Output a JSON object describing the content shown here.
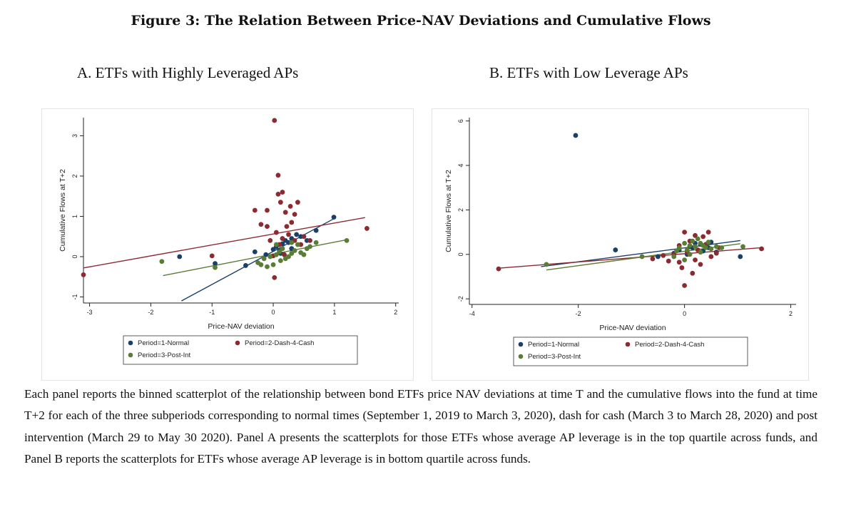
{
  "figure": {
    "title": "Figure 3: The Relation Between Price-NAV Deviations and Cumulative Flows",
    "caption": "Each panel reports the binned scatterplot of the relationship between bond ETFs price NAV deviations at time T and the cumulative flows into the fund at time T+2 for each of the three subperiods corresponding to normal times (September 1, 2019 to March 3, 2020), dash for cash (March 3 to March 28, 2020) and post intervention (March 29 to May 30 2020). Panel A presents the scatterplots for those ETFs whose average AP leverage is in the top quartile across funds, and Panel B reports the scatterplots for ETFs whose average AP leverage is in bottom quartile across funds."
  },
  "colors": {
    "normal": "#1b3f66",
    "dash": "#8c2a32",
    "post": "#5a7d36"
  },
  "chart_data": [
    {
      "id": "A",
      "type": "scatter",
      "title": "A.  ETFs with Highly Leveraged APs",
      "xlabel": "Price-NAV deviation",
      "ylabel": "Cumulative Flows at T+2",
      "xlim": [
        -3.1,
        2.05
      ],
      "ylim": [
        -1.15,
        3.45
      ],
      "xticks": [
        -3,
        -2,
        -1,
        0,
        1,
        2
      ],
      "yticks": [
        -1,
        0,
        1,
        2,
        3
      ],
      "legend": [
        "Period=1-Normal",
        "Period=2-Dash-4-Cash",
        "Period=3-Post-Int"
      ],
      "series": [
        {
          "name": "Period=1-Normal",
          "color": "#1b3f66",
          "points": [
            [
              -1.53,
              0.0
            ],
            [
              -0.95,
              -0.17
            ],
            [
              -0.45,
              -0.22
            ],
            [
              -0.3,
              0.12
            ],
            [
              -0.12,
              0.05
            ],
            [
              0.0,
              0.18
            ],
            [
              0.05,
              0.25
            ],
            [
              0.1,
              0.15
            ],
            [
              0.15,
              0.32
            ],
            [
              0.2,
              0.4
            ],
            [
              0.25,
              0.35
            ],
            [
              0.3,
              0.45
            ],
            [
              0.38,
              0.55
            ],
            [
              0.45,
              0.5
            ],
            [
              0.55,
              0.4
            ],
            [
              0.7,
              0.65
            ],
            [
              0.99,
              0.98
            ],
            [
              0.12,
              0.08
            ],
            [
              0.3,
              0.2
            ]
          ],
          "fit": [
            [
              -1.5,
              -1.1
            ],
            [
              1.0,
              0.95
            ]
          ]
        },
        {
          "name": "Period=2-Dash-4-Cash",
          "color": "#8c2a32",
          "points": [
            [
              -3.1,
              -0.45
            ],
            [
              -1.0,
              0.02
            ],
            [
              -0.3,
              1.15
            ],
            [
              0.02,
              3.38
            ],
            [
              0.08,
              2.02
            ],
            [
              0.08,
              1.55
            ],
            [
              0.15,
              1.6
            ],
            [
              0.12,
              1.35
            ],
            [
              -0.1,
              1.15
            ],
            [
              0.28,
              1.25
            ],
            [
              0.2,
              1.1
            ],
            [
              0.4,
              1.35
            ],
            [
              0.35,
              1.05
            ],
            [
              -0.2,
              0.8
            ],
            [
              -0.1,
              0.75
            ],
            [
              0.05,
              0.6
            ],
            [
              0.25,
              0.55
            ],
            [
              0.35,
              0.4
            ],
            [
              0.5,
              0.5
            ],
            [
              0.6,
              0.4
            ],
            [
              0.0,
              0.02
            ],
            [
              0.02,
              -0.52
            ],
            [
              0.1,
              0.3
            ],
            [
              1.53,
              0.7
            ],
            [
              0.15,
              0.45
            ],
            [
              -0.05,
              0.4
            ],
            [
              0.22,
              0.75
            ],
            [
              0.3,
              0.85
            ],
            [
              0.45,
              0.3
            ],
            [
              0.18,
              0.05
            ]
          ],
          "fit": [
            [
              -3.1,
              -0.28
            ],
            [
              1.5,
              0.97
            ]
          ]
        },
        {
          "name": "Period=3-Post-Int",
          "color": "#5a7d36",
          "points": [
            [
              -1.82,
              -0.12
            ],
            [
              -0.95,
              -0.27
            ],
            [
              -0.2,
              -0.2
            ],
            [
              -0.1,
              -0.25
            ],
            [
              0.0,
              -0.2
            ],
            [
              0.05,
              0.05
            ],
            [
              0.1,
              0.12
            ],
            [
              0.15,
              0.2
            ],
            [
              0.2,
              -0.05
            ],
            [
              0.25,
              0.0
            ],
            [
              0.3,
              0.08
            ],
            [
              0.35,
              0.15
            ],
            [
              0.45,
              0.1
            ],
            [
              0.55,
              0.2
            ],
            [
              0.6,
              0.25
            ],
            [
              0.7,
              0.35
            ],
            [
              1.2,
              0.4
            ],
            [
              -0.15,
              -0.05
            ],
            [
              -0.05,
              0.0
            ],
            [
              0.12,
              -0.1
            ],
            [
              0.4,
              0.3
            ],
            [
              0.5,
              0.05
            ],
            [
              -0.25,
              -0.15
            ],
            [
              0.05,
              0.3
            ],
            [
              0.3,
              0.35
            ]
          ],
          "fit": [
            [
              -1.8,
              -0.47
            ],
            [
              1.2,
              0.42
            ]
          ]
        }
      ]
    },
    {
      "id": "B",
      "type": "scatter",
      "title": "B.  ETFs with Low Leverage APs",
      "xlabel": "Price-NAV deviation",
      "ylabel": "Cumulative Flows at T+2",
      "xlim": [
        -4.05,
        2.1
      ],
      "ylim": [
        -2.25,
        6.15
      ],
      "xticks": [
        -4,
        -2,
        0,
        2
      ],
      "yticks": [
        -2,
        0,
        2,
        4,
        6
      ],
      "legend": [
        "Period=1-Normal",
        "Period=2-Dash-4-Cash",
        "Period=3-Post-Int"
      ],
      "series": [
        {
          "name": "Period=1-Normal",
          "color": "#1b3f66",
          "points": [
            [
              -2.05,
              5.35
            ],
            [
              -1.3,
              0.2
            ],
            [
              -0.5,
              -0.1
            ],
            [
              -0.1,
              0.2
            ],
            [
              0.1,
              0.35
            ],
            [
              0.2,
              0.5
            ],
            [
              0.3,
              0.45
            ],
            [
              0.45,
              0.3
            ],
            [
              0.6,
              0.1
            ],
            [
              1.05,
              -0.1
            ],
            [
              -0.2,
              0.05
            ],
            [
              0.05,
              0.0
            ],
            [
              0.35,
              0.15
            ],
            [
              0.15,
              0.3
            ],
            [
              0.5,
              0.55
            ]
          ],
          "fit": [
            [
              -2.7,
              -0.55
            ],
            [
              1.05,
              0.62
            ]
          ]
        },
        {
          "name": "Period=2-Dash-4-Cash",
          "color": "#8c2a32",
          "points": [
            [
              -3.5,
              -0.65
            ],
            [
              0.0,
              -1.4
            ],
            [
              0.3,
              -0.45
            ],
            [
              0.15,
              -0.85
            ],
            [
              -0.05,
              -0.6
            ],
            [
              -0.3,
              -0.3
            ],
            [
              -0.6,
              -0.2
            ],
            [
              0.0,
              1.0
            ],
            [
              0.2,
              0.85
            ],
            [
              0.45,
              1.0
            ],
            [
              0.35,
              0.8
            ],
            [
              0.1,
              0.6
            ],
            [
              -0.1,
              0.4
            ],
            [
              0.25,
              0.2
            ],
            [
              0.5,
              -0.1
            ],
            [
              0.6,
              0.05
            ],
            [
              1.45,
              0.25
            ],
            [
              0.05,
              0.1
            ],
            [
              -0.2,
              0.0
            ],
            [
              0.4,
              0.45
            ],
            [
              -0.4,
              -0.05
            ],
            [
              0.2,
              -0.25
            ],
            [
              0.65,
              0.3
            ],
            [
              -0.1,
              -0.35
            ]
          ],
          "fit": [
            [
              -3.5,
              -0.62
            ],
            [
              1.45,
              0.3
            ]
          ]
        },
        {
          "name": "Period=3-Post-Int",
          "color": "#5a7d36",
          "points": [
            [
              -2.6,
              -0.45
            ],
            [
              -0.8,
              -0.1
            ],
            [
              -0.1,
              0.3
            ],
            [
              0.0,
              0.5
            ],
            [
              0.05,
              0.2
            ],
            [
              0.1,
              0.4
            ],
            [
              0.15,
              0.6
            ],
            [
              0.2,
              0.35
            ],
            [
              0.25,
              0.7
            ],
            [
              0.3,
              0.5
            ],
            [
              0.35,
              0.4
            ],
            [
              0.4,
              0.3
            ],
            [
              0.5,
              0.25
            ],
            [
              0.6,
              0.35
            ],
            [
              0.7,
              0.3
            ],
            [
              1.1,
              0.35
            ],
            [
              -0.2,
              -0.1
            ],
            [
              0.0,
              -0.25
            ],
            [
              0.1,
              0.0
            ],
            [
              0.3,
              0.1
            ],
            [
              0.45,
              0.55
            ],
            [
              -0.15,
              0.15
            ]
          ],
          "fit": [
            [
              -2.6,
              -0.7
            ],
            [
              1.05,
              0.48
            ]
          ]
        }
      ]
    }
  ]
}
